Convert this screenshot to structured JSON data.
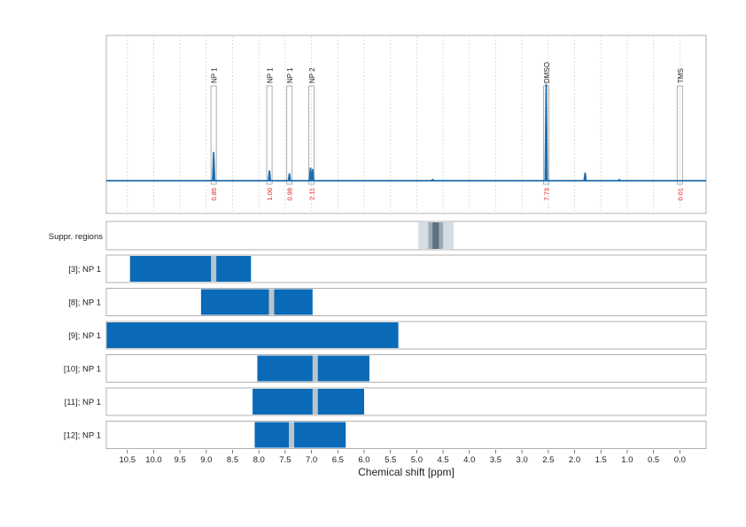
{
  "chart_data": {
    "type": "line",
    "xlabel": "Chemical shift [ppm]",
    "xlim": [
      10.9,
      -0.5
    ],
    "x_reversed": true,
    "xticks": [
      10.5,
      10.0,
      9.5,
      9.0,
      8.5,
      8.0,
      7.5,
      7.0,
      6.5,
      6.0,
      5.5,
      5.0,
      4.5,
      4.0,
      3.5,
      3.0,
      2.5,
      2.0,
      1.5,
      1.0,
      0.5,
      0.0
    ],
    "xtick_labels": [
      "10.5",
      "10.0",
      "9.5",
      "9.0",
      "8.5",
      "8.0",
      "7.5",
      "7.0",
      "6.5",
      "6.0",
      "5.5",
      "5.0",
      "4.5",
      "4.0",
      "3.5",
      "3.0",
      "2.5",
      "2.0",
      "1.5",
      "1.0",
      "0.5",
      "0.0"
    ],
    "grid": true,
    "colors": {
      "spectrum": "#1f6fb0",
      "bar": "#0a6ab8",
      "peak_gap": "#b9c4cc",
      "suppr_light": "#d5dde4",
      "suppr_mid": "#9aa9b5",
      "suppr_dark": "#5f6f7d",
      "integral_text": "#e0201f",
      "frame": "#b0b0b0"
    },
    "spectrum": {
      "peaks": [
        {
          "ppm": 8.86,
          "height": 0.2
        },
        {
          "ppm": 7.8,
          "height": 0.07
        },
        {
          "ppm": 7.42,
          "height": 0.05
        },
        {
          "ppm": 7.02,
          "height": 0.09
        },
        {
          "ppm": 6.98,
          "height": 0.08
        },
        {
          "ppm": 2.54,
          "height": 0.68
        },
        {
          "ppm": 1.8,
          "height": 0.055
        },
        {
          "ppm": 4.7,
          "height": 0.01
        },
        {
          "ppm": 1.15,
          "height": 0.01
        }
      ],
      "annotations": [
        {
          "label": "NP 1",
          "ppm": 8.86,
          "integral": "0.85"
        },
        {
          "label": "NP 1",
          "ppm": 7.8,
          "integral": "1.00"
        },
        {
          "label": "NP 1",
          "ppm": 7.42,
          "integral": "0.98"
        },
        {
          "label": "NP 2",
          "ppm": 7.0,
          "integral": "2.11"
        },
        {
          "label": "DMSO",
          "ppm": 2.54,
          "integral": "7.73"
        },
        {
          "label": "TMS",
          "ppm": 0.0,
          "integral": "0.01"
        }
      ]
    },
    "suppr_regions": {
      "label": "Suppr. regions",
      "outer": [
        4.97,
        4.3
      ],
      "mid": [
        4.78,
        4.5
      ],
      "inner": [
        4.7,
        4.58
      ]
    },
    "rows": [
      {
        "label": "[3]; NP 1",
        "range": [
          10.45,
          8.15
        ],
        "peaks": [
          8.86
        ]
      },
      {
        "label": "[8]; NP 1",
        "range": [
          9.1,
          6.98
        ],
        "peaks": [
          7.76
        ]
      },
      {
        "label": "[9]; NP 1",
        "range": [
          10.9,
          5.35
        ],
        "peaks": []
      },
      {
        "label": "[10]; NP 1",
        "range": [
          8.03,
          5.9
        ],
        "peaks": [
          6.93
        ]
      },
      {
        "label": "[11]; NP 1",
        "range": [
          8.12,
          6.0
        ],
        "peaks": [
          6.93
        ]
      },
      {
        "label": "[12]; NP 1",
        "range": [
          8.08,
          6.35
        ],
        "peaks": [
          7.38
        ]
      }
    ]
  }
}
